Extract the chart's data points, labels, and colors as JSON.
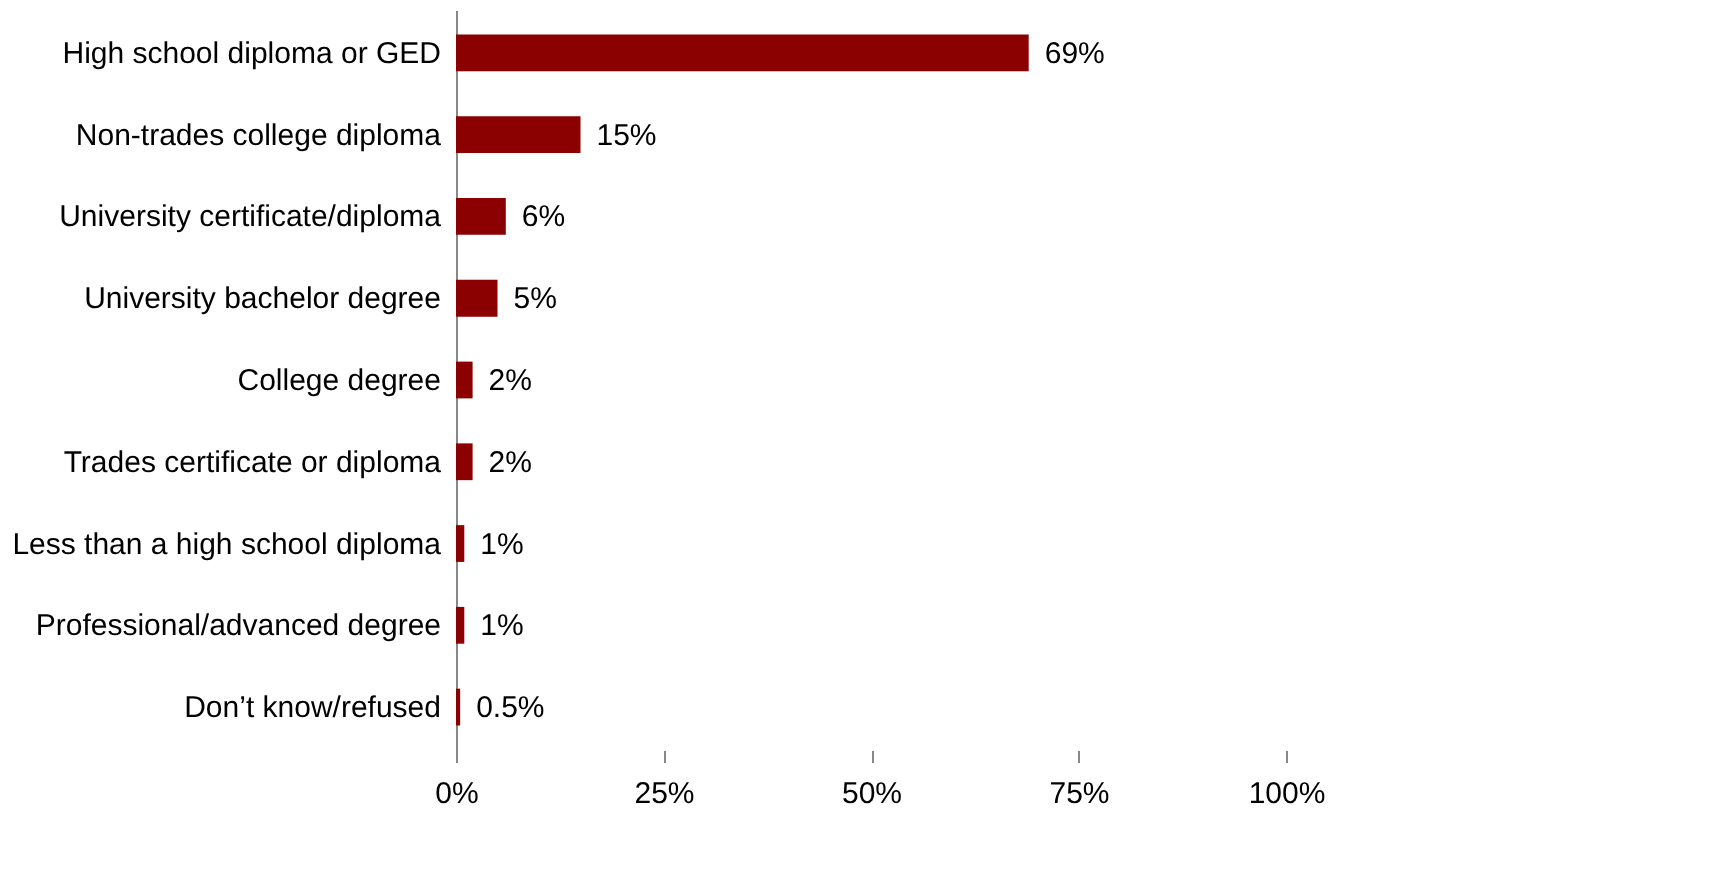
{
  "chart_data": {
    "type": "bar",
    "orientation": "horizontal",
    "categories": [
      "High school diploma or GED",
      "Non-trades college diploma",
      "University certificate/diploma",
      "University bachelor degree",
      "College degree",
      "Trades certificate or diploma",
      "Less than a high school diploma",
      "Professional/advanced degree",
      "Don’t know/refused"
    ],
    "values": [
      69,
      15,
      6,
      5,
      2,
      2,
      1,
      1,
      0.5
    ],
    "value_labels": [
      "69%",
      "15%",
      "6%",
      "5%",
      "2%",
      "2%",
      "1%",
      "1%",
      "0.5%"
    ],
    "color": "#8b0000",
    "xlim": [
      0,
      100
    ],
    "xticks": [
      {
        "value": 0,
        "label": "0%"
      },
      {
        "value": 25,
        "label": "25%"
      },
      {
        "value": 50,
        "label": "50%"
      },
      {
        "value": 75,
        "label": "75%"
      },
      {
        "value": 100,
        "label": "100%"
      }
    ],
    "grid": false
  }
}
